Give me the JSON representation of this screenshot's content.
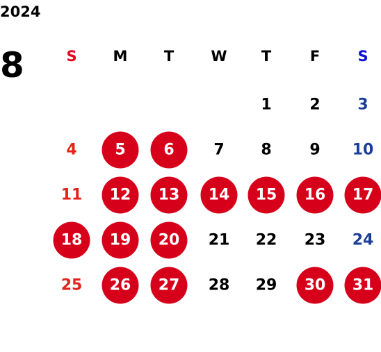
{
  "year": "2024",
  "month": "8",
  "weekdays": [
    {
      "label": "S",
      "header_color": "#e8001c",
      "day_color": "#e2231a"
    },
    {
      "label": "M",
      "header_color": "#000000",
      "day_color": "#000000"
    },
    {
      "label": "T",
      "header_color": "#000000",
      "day_color": "#000000"
    },
    {
      "label": "W",
      "header_color": "#000000",
      "day_color": "#000000"
    },
    {
      "label": "T",
      "header_color": "#000000",
      "day_color": "#000000"
    },
    {
      "label": "F",
      "header_color": "#000000",
      "day_color": "#000000"
    },
    {
      "label": "S",
      "header_color": "#1010d8",
      "day_color": "#1b3f98"
    }
  ],
  "weeks": [
    [
      null,
      null,
      null,
      null,
      1,
      2,
      3
    ],
    [
      4,
      5,
      6,
      7,
      8,
      9,
      10
    ],
    [
      11,
      12,
      13,
      14,
      15,
      16,
      17
    ],
    [
      18,
      19,
      20,
      21,
      22,
      23,
      24
    ],
    [
      25,
      26,
      27,
      28,
      29,
      30,
      31
    ]
  ],
  "highlighted": [
    5,
    6,
    12,
    13,
    14,
    15,
    16,
    17,
    18,
    19,
    20,
    26,
    27,
    30,
    31
  ],
  "highlight_color": "#d7001b",
  "highlight_text_color": "#ffffff"
}
